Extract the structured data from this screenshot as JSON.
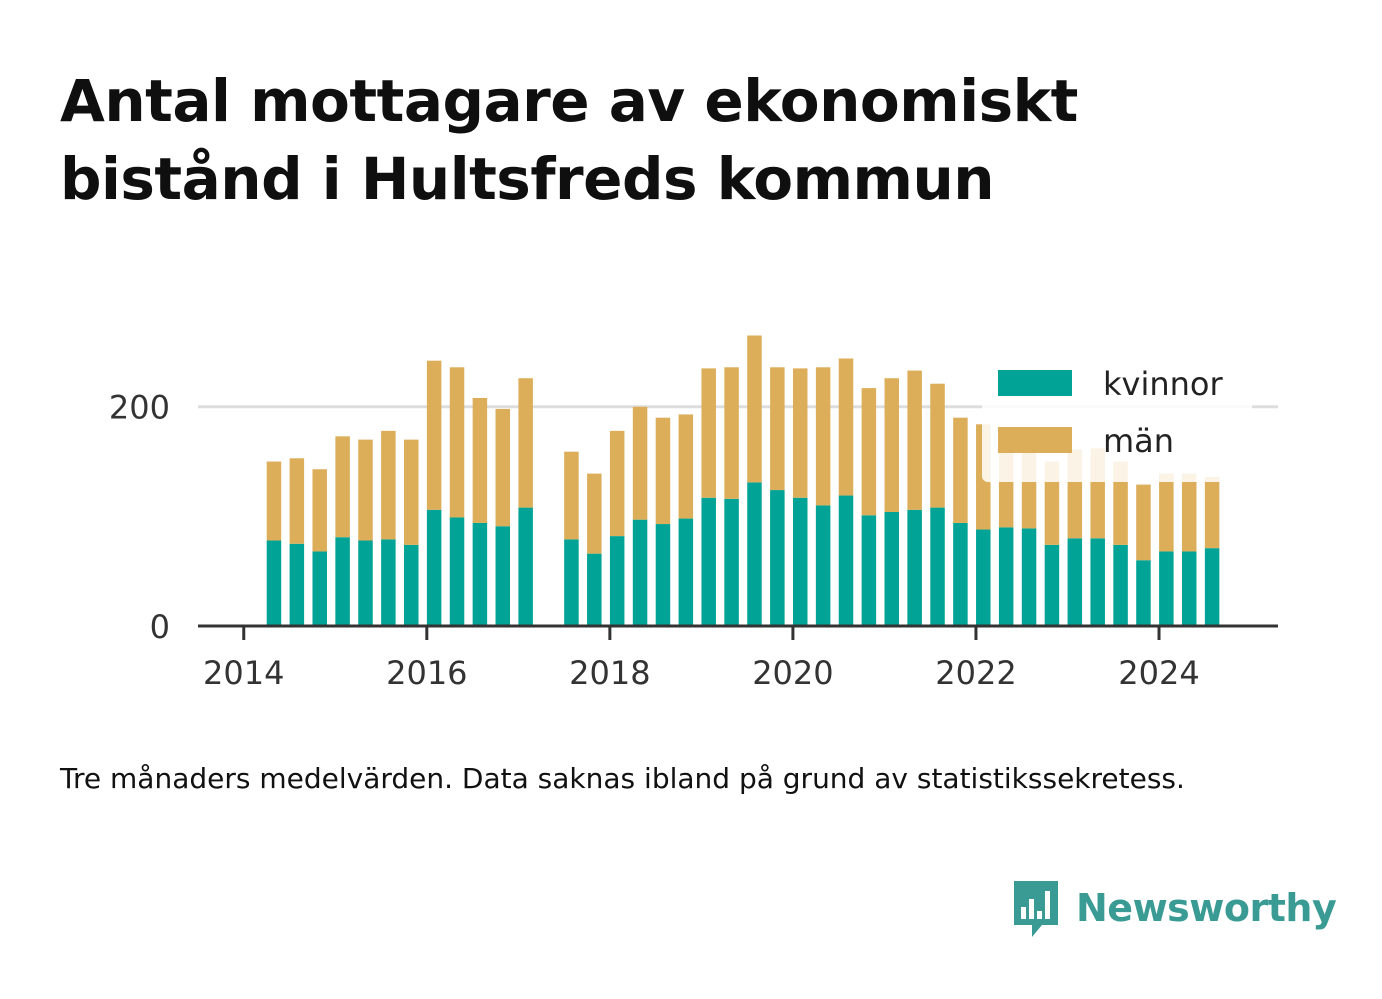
{
  "title": "Antal mottagare av ekonomiskt bistånd i Hultsfreds kommun",
  "note": "Tre månaders medelvärden. Data saknas ibland på grund av statistikssekretess.",
  "brand": {
    "name": "Newsworthy",
    "icon": "newsworthy-logo-icon"
  },
  "colors": {
    "kvinnor": "#00a396",
    "man": "#dcae5a",
    "grid": "#dddddd",
    "axis": "#333333",
    "text": "#333333",
    "brand": "#3a9b94"
  },
  "chart_data": {
    "type": "bar",
    "stacked": true,
    "x_tick_labels": [
      "2014",
      "2016",
      "2018",
      "2020",
      "2022",
      "2024"
    ],
    "y_tick_labels": [
      "0",
      "200"
    ],
    "ylim": [
      0,
      270
    ],
    "xlim": [
      2013.5,
      2025.3
    ],
    "grid": "horizontal",
    "legend_position": "top-right",
    "x": [
      2014.33,
      2014.58,
      2014.83,
      2015.08,
      2015.33,
      2015.58,
      2015.83,
      2016.08,
      2016.33,
      2016.58,
      2016.83,
      2017.08,
      2017.58,
      2017.83,
      2018.08,
      2018.33,
      2018.58,
      2018.83,
      2019.08,
      2019.33,
      2019.58,
      2019.83,
      2020.08,
      2020.33,
      2020.58,
      2020.83,
      2021.08,
      2021.33,
      2021.58,
      2021.83,
      2022.08,
      2022.33,
      2022.58,
      2022.83,
      2023.08,
      2023.33,
      2023.58,
      2023.83,
      2024.08,
      2024.33,
      2024.58
    ],
    "series": [
      {
        "name": "kvinnor",
        "values": [
          78,
          75,
          68,
          81,
          78,
          79,
          74,
          106,
          99,
          94,
          91,
          108,
          79,
          66,
          82,
          97,
          93,
          98,
          117,
          116,
          131,
          124,
          117,
          110,
          119,
          101,
          104,
          106,
          108,
          94,
          88,
          90,
          89,
          74,
          80,
          80,
          74,
          60,
          68,
          68,
          71
        ]
      },
      {
        "name": "män",
        "values": [
          72,
          78,
          75,
          92,
          92,
          99,
          96,
          136,
          137,
          114,
          107,
          118,
          80,
          73,
          96,
          103,
          97,
          95,
          118,
          120,
          134,
          112,
          118,
          126,
          125,
          116,
          122,
          127,
          113,
          96,
          96,
          79,
          74,
          76,
          81,
          82,
          76,
          69,
          71,
          71,
          65
        ]
      }
    ]
  }
}
